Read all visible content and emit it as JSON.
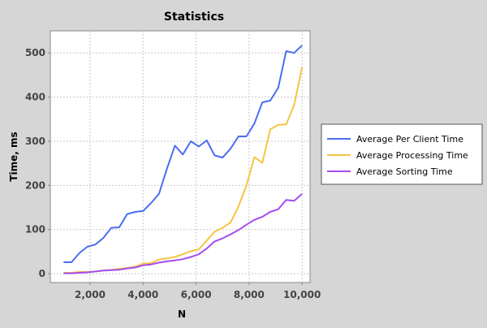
{
  "chart_data": {
    "type": "line",
    "title": "Statistics",
    "xlabel": "N",
    "ylabel": "Time, ms",
    "xlim": [
      500,
      10300
    ],
    "ylim": [
      -20,
      550
    ],
    "x_ticks": [
      2000,
      4000,
      6000,
      8000,
      10000
    ],
    "x_tick_labels": [
      "2,000",
      "4,000",
      "6,000",
      "8,000",
      "10,000"
    ],
    "y_ticks": [
      0,
      100,
      200,
      300,
      400,
      500
    ],
    "y_tick_labels": [
      "0",
      "100",
      "200",
      "300",
      "400",
      "500"
    ],
    "grid": true,
    "legend_position": "right",
    "x": [
      1000,
      1300,
      1600,
      1900,
      2200,
      2500,
      2800,
      3100,
      3400,
      3700,
      4000,
      4300,
      4600,
      4900,
      5200,
      5500,
      5800,
      6100,
      6400,
      6700,
      7000,
      7300,
      7600,
      7900,
      8200,
      8500,
      8800,
      9100,
      9400,
      9700,
      10000
    ],
    "series": [
      {
        "name": "Average Per Client Time",
        "color": "#4a6ef0",
        "values": [
          26,
          26,
          47,
          61,
          66,
          81,
          104,
          105,
          135,
          140,
          142,
          160,
          181,
          238,
          290,
          270,
          300,
          288,
          302,
          268,
          263,
          283,
          311,
          311,
          340,
          388,
          392,
          421,
          504,
          500,
          517
        ]
      },
      {
        "name": "Average Processing Time",
        "color": "#f5c542",
        "values": [
          2,
          2,
          4,
          4,
          5,
          7,
          9,
          11,
          13,
          16,
          23,
          24,
          32,
          35,
          38,
          44,
          51,
          55,
          75,
          95,
          104,
          116,
          152,
          200,
          264,
          251,
          327,
          337,
          338,
          382,
          468
        ]
      },
      {
        "name": "Average Sorting Time",
        "color": "#a54cf0",
        "values": [
          1,
          1,
          2,
          3,
          5,
          7,
          8,
          9,
          12,
          14,
          19,
          21,
          25,
          28,
          30,
          33,
          38,
          44,
          57,
          73,
          80,
          89,
          99,
          111,
          122,
          129,
          140,
          146,
          167,
          165,
          181
        ]
      }
    ]
  }
}
